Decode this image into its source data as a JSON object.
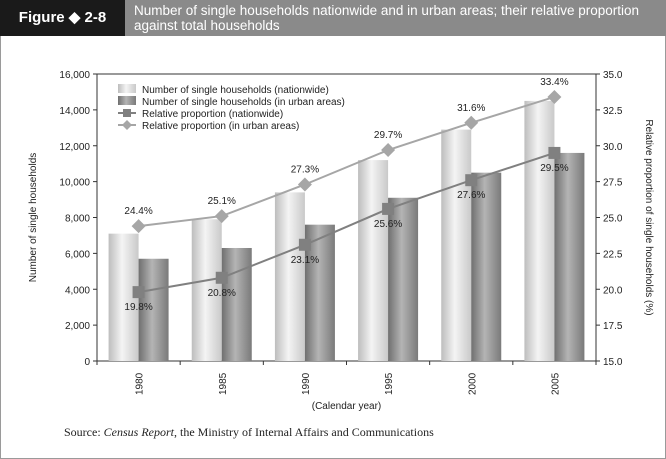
{
  "figure": {
    "label": "Figure ◆ 2-8",
    "title": "Number of single households nationwide and in urban areas; their relative proportion against total households"
  },
  "source": {
    "prefix": "Source: ",
    "publication": "Census Report",
    "suffix": ", the Ministry of Internal Affairs and Communications"
  },
  "colors": {
    "header_bg": "#8a8a8a",
    "label_bg": "#1a1a1a",
    "bar_nationwide": "#d9d9d9",
    "bar_urban": "#8c8c8c",
    "line_nationwide": "#808080",
    "line_urban": "#a6a6a6"
  },
  "chart_data": {
    "type": "bar",
    "categories": [
      "1980",
      "1985",
      "1990",
      "1995",
      "2000",
      "2005"
    ],
    "xlabel": "(Calendar year)",
    "ylabel": "Number of single households",
    "y2label": "Relative proportion of single households (%)",
    "ylim": [
      0,
      16000
    ],
    "yticks": [
      "0",
      "2,000",
      "4,000",
      "6,000",
      "8,000",
      "10,000",
      "12,000",
      "14,000",
      "16,000"
    ],
    "y2lim": [
      15.0,
      35.0
    ],
    "y2ticks": [
      "15.0",
      "17.5",
      "20.0",
      "22.5",
      "25.0",
      "27.5",
      "30.0",
      "32.5",
      "35.0"
    ],
    "legend_position": "top-left",
    "series": [
      {
        "name": "Number of single households (nationwide)",
        "kind": "bar",
        "axis": "left",
        "values": [
          7100,
          7900,
          9400,
          11200,
          12900,
          14500
        ]
      },
      {
        "name": "Number of single households (in urban areas)",
        "kind": "bar",
        "axis": "left",
        "values": [
          5700,
          6300,
          7600,
          9100,
          10500,
          11600
        ]
      },
      {
        "name": "Relative proportion (nationwide)",
        "kind": "line",
        "marker": "square",
        "axis": "right",
        "values": [
          19.8,
          20.8,
          23.1,
          25.6,
          27.6,
          29.5
        ],
        "labels": [
          "19.8%",
          "20.8%",
          "23.1%",
          "25.6%",
          "27.6%",
          "29.5%"
        ]
      },
      {
        "name": "Relative proportion (in urban areas)",
        "kind": "line",
        "marker": "diamond",
        "axis": "right",
        "values": [
          24.4,
          25.1,
          27.3,
          29.7,
          31.6,
          33.4
        ],
        "labels": [
          "24.4%",
          "25.1%",
          "27.3%",
          "29.7%",
          "31.6%",
          "33.4%"
        ]
      }
    ]
  }
}
